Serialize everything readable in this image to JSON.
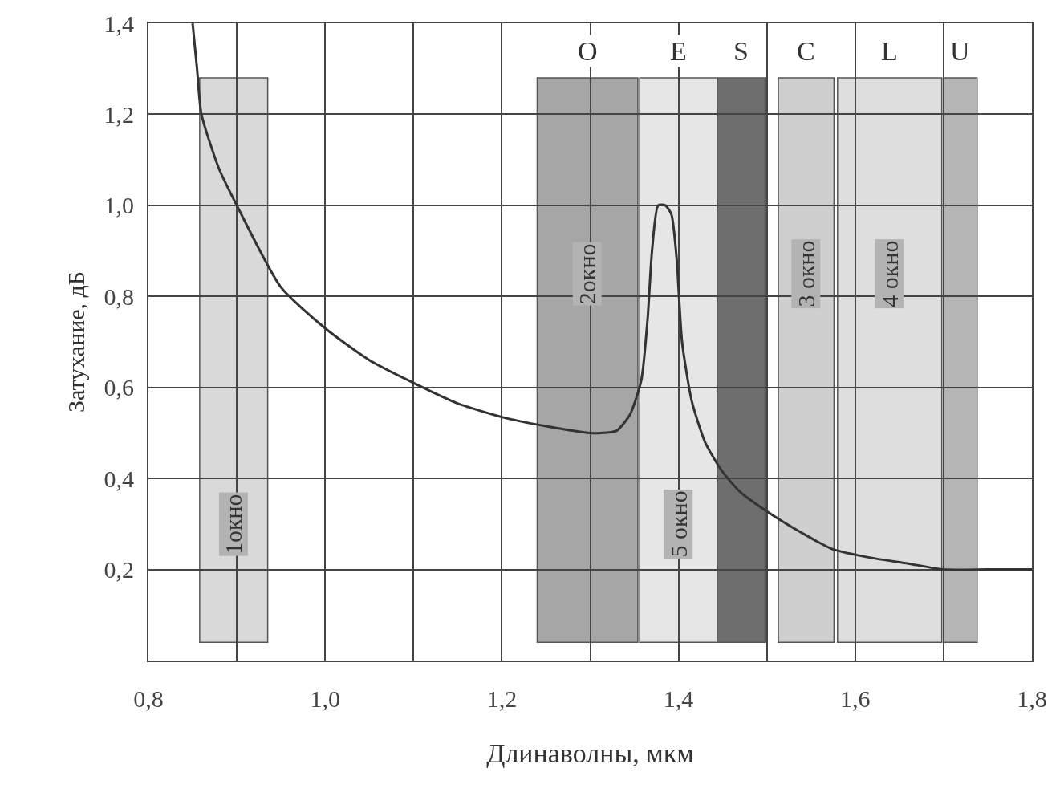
{
  "chart_data": {
    "type": "line",
    "xlabel": "Длинаволны, мкм",
    "ylabel": "Затухание, дБ",
    "xlim": [
      0.8,
      1.8
    ],
    "ylim": [
      0,
      1.4
    ],
    "xticks": [
      {
        "value": 0.8,
        "label": "0,8"
      },
      {
        "value": 0.9,
        "label": null
      },
      {
        "value": 1.0,
        "label": "1,0"
      },
      {
        "value": 1.1,
        "label": null
      },
      {
        "value": 1.2,
        "label": "1,2"
      },
      {
        "value": 1.3,
        "label": null
      },
      {
        "value": 1.4,
        "label": "1,4"
      },
      {
        "value": 1.5,
        "label": null
      },
      {
        "value": 1.6,
        "label": "1,6"
      },
      {
        "value": 1.7,
        "label": null
      },
      {
        "value": 1.8,
        "label": "1,8"
      }
    ],
    "yticks": [
      {
        "value": 0,
        "label": null
      },
      {
        "value": 0.2,
        "label": "0,2"
      },
      {
        "value": 0.4,
        "label": "0,4"
      },
      {
        "value": 0.6,
        "label": "0,6"
      },
      {
        "value": 0.8,
        "label": "0,8"
      },
      {
        "value": 1.0,
        "label": "1,0"
      },
      {
        "value": 1.2,
        "label": "1,2"
      },
      {
        "value": 1.4,
        "label": "1,4"
      }
    ],
    "grid": true,
    "legend": false,
    "marker": "none",
    "line_style": "solid",
    "series": [
      {
        "color": "#333333",
        "x": [
          0.85,
          0.855,
          0.86,
          0.88,
          0.9,
          0.95,
          1.0,
          1.05,
          1.1,
          1.15,
          1.2,
          1.25,
          1.3,
          1.313,
          1.33,
          1.345,
          1.358,
          1.365,
          1.37,
          1.377,
          1.385,
          1.392,
          1.398,
          1.404,
          1.415,
          1.43,
          1.449,
          1.47,
          1.506,
          1.54,
          1.574,
          1.62,
          1.66,
          1.7,
          1.75,
          1.8
        ],
        "values": [
          1.4,
          1.3,
          1.2,
          1.08,
          1.0,
          0.82,
          0.73,
          0.66,
          0.61,
          0.565,
          0.535,
          0.515,
          0.5,
          0.5,
          0.505,
          0.54,
          0.617,
          0.75,
          0.9,
          1.0,
          1.0,
          0.98,
          0.88,
          0.7,
          0.57,
          0.48,
          0.417,
          0.37,
          0.32,
          0.28,
          0.245,
          0.225,
          0.213,
          0.2,
          0.2,
          0.2
        ]
      }
    ],
    "bands": [
      {
        "axis": "x",
        "from": 0.858,
        "to": 0.935,
        "label": "1окно",
        "color": "#d9d9d9"
      },
      {
        "axis": "x",
        "from": 1.24,
        "to": 1.354,
        "label": "2окно",
        "color": "#a6a6a6"
      },
      {
        "axis": "x",
        "from": 1.356,
        "to": 1.444,
        "label": "5 окно",
        "color": "#e6e6e6"
      },
      {
        "axis": "x",
        "from": 1.444,
        "to": 1.498,
        "label": null,
        "color": "#6e6e6e"
      },
      {
        "axis": "x",
        "from": 1.513,
        "to": 1.576,
        "label": "3 окно",
        "color": "#cfcfcf"
      },
      {
        "axis": "x",
        "from": 1.58,
        "to": 1.698,
        "label": "4 окно",
        "color": "#dedede"
      },
      {
        "axis": "x",
        "from": 1.7,
        "to": 1.738,
        "label": null,
        "color": "#b5b5b5"
      }
    ],
    "annotations": [
      "O",
      "E",
      "S",
      "C",
      "L",
      "U"
    ]
  }
}
